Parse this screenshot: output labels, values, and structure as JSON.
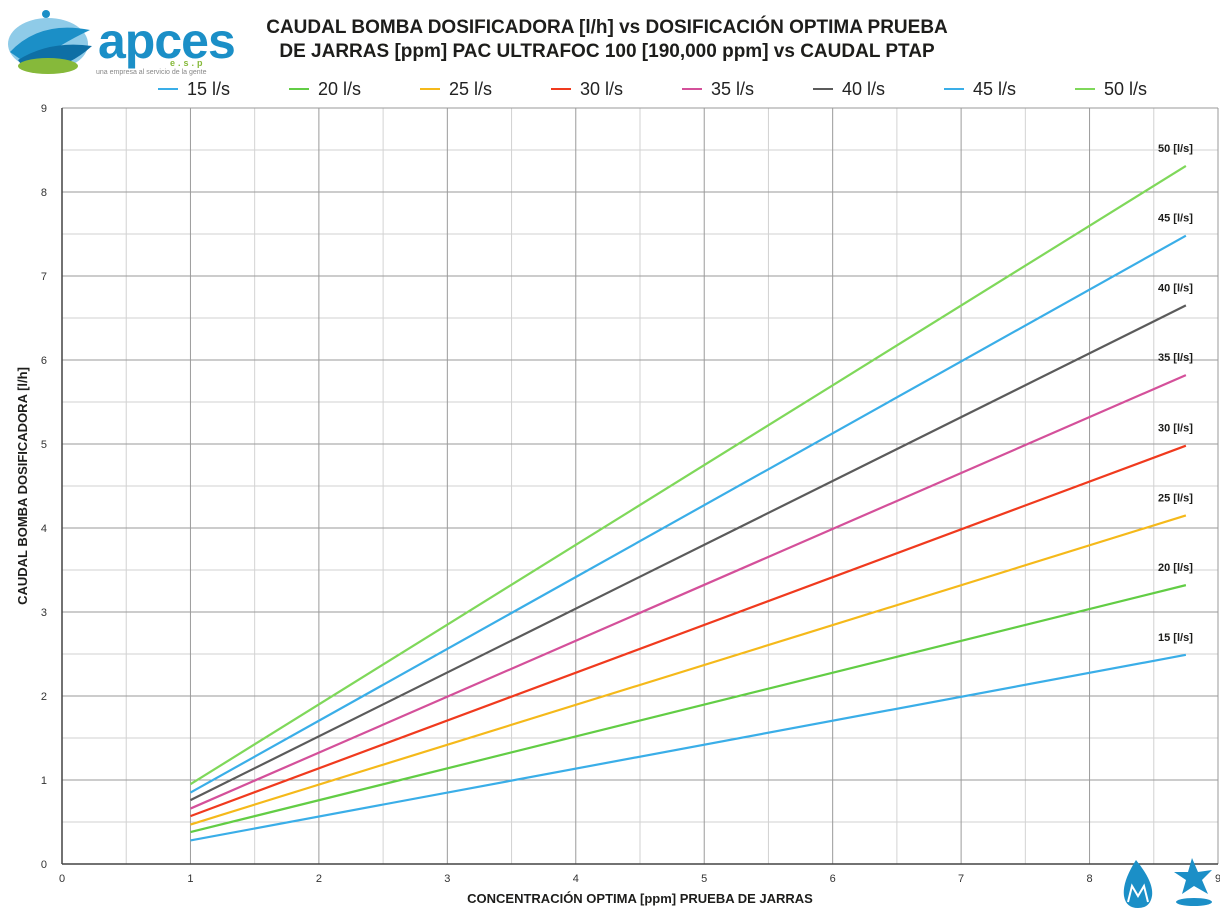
{
  "logo": {
    "brand": "apces",
    "suffix": "e.s.p",
    "tagline": "una empresa al servicio de la gente"
  },
  "title_lines": [
    "CAUDAL BOMBA DOSIFICADORA [l/h] vs DOSIFICACIÓN OPTIMA PRUEBA",
    "DE JARRAS [ppm] PAC ULTRAFOC 100 [190,000 ppm] vs CAUDAL PTAP"
  ],
  "chart_data": {
    "type": "line",
    "title": "CAUDAL BOMBA DOSIFICADORA [l/h] vs DOSIFICACIÓN OPTIMA PRUEBA DE JARRAS [ppm] PAC ULTRAFOC 100 [190,000 ppm] vs CAUDAL PTAP",
    "xlabel": "CONCENTRACIÓN OPTIMA [ppm] PRUEBA DE JARRAS",
    "ylabel": "CAUDAL BOMBA DOSIFICADORA  [l/h]",
    "xlim": [
      0,
      9
    ],
    "ylim": [
      0,
      9
    ],
    "x_ticks": [
      "0",
      "1",
      "2",
      "3",
      "4",
      "5",
      "6",
      "7",
      "8",
      "9"
    ],
    "y_ticks": [
      "0",
      "1",
      "2",
      "3",
      "4",
      "5",
      "6",
      "7",
      "8",
      "9"
    ],
    "grid": true,
    "legend_position": "top",
    "x": [
      1,
      8.75
    ],
    "series": [
      {
        "name": "15 l/s",
        "end_label": "15 [l/s]",
        "color": "#3aaee8",
        "values": [
          0.28,
          2.49
        ]
      },
      {
        "name": "20 l/s",
        "end_label": "20 [l/s]",
        "color": "#62cd45",
        "values": [
          0.38,
          3.32
        ]
      },
      {
        "name": "25 l/s",
        "end_label": "25 [l/s]",
        "color": "#f5b91a",
        "values": [
          0.47,
          4.15
        ]
      },
      {
        "name": "30 l/s",
        "end_label": "30 [l/s]",
        "color": "#f03a1e",
        "values": [
          0.57,
          4.98
        ]
      },
      {
        "name": "35 l/s",
        "end_label": "35 [l/s]",
        "color": "#d4509a",
        "values": [
          0.66,
          5.82
        ]
      },
      {
        "name": "40 l/s",
        "end_label": "40 [l/s]",
        "color": "#5b5b5b",
        "values": [
          0.76,
          6.65
        ]
      },
      {
        "name": "45 l/s",
        "end_label": "45 [l/s]",
        "color": "#3aaee8",
        "values": [
          0.85,
          7.48
        ]
      },
      {
        "name": "50 l/s",
        "end_label": "50 [l/s]",
        "color": "#7fd85a",
        "values": [
          0.95,
          8.31
        ]
      }
    ]
  }
}
